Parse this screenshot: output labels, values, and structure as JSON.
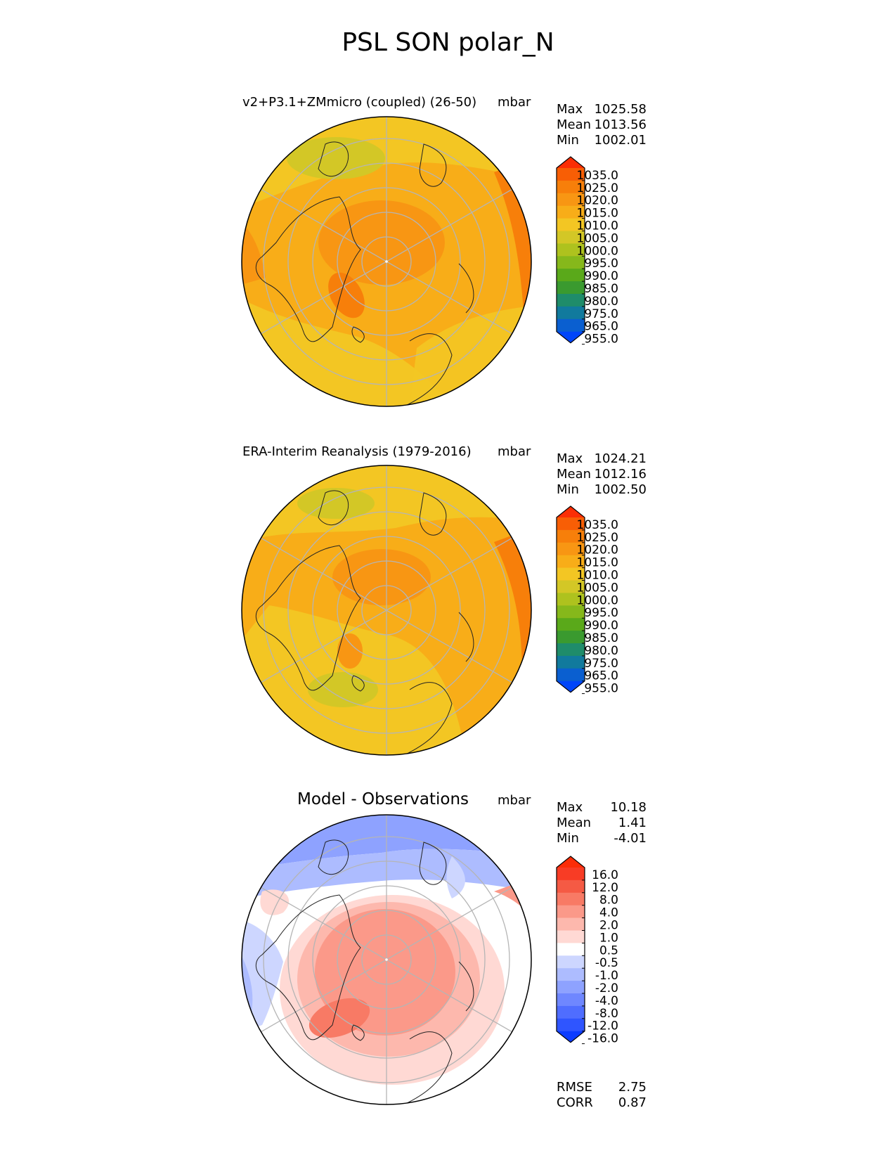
{
  "figure_title": "PSL SON polar_N",
  "units": "mbar",
  "colors": {
    "abs_levels": [
      "#0045f9",
      "#0a5fd0",
      "#117a9d",
      "#1f8c6a",
      "#3a9a2f",
      "#5aa91a",
      "#86b81b",
      "#aec21e",
      "#d3c726",
      "#f3c623",
      "#f8ad18",
      "#f89613",
      "#f77f0a",
      "#f85e05",
      "#fb2e05"
    ],
    "diff_levels": [
      "#0b3bff",
      "#2f55ff",
      "#4f6dff",
      "#6f87ff",
      "#8ea2ff",
      "#adbcff",
      "#cdd6ff",
      "#ffffff",
      "#ffd9d4",
      "#fdb8ad",
      "#fb9989",
      "#f87a65",
      "#f55a44",
      "#f83c25",
      "#fb2d08"
    ]
  },
  "panels": [
    {
      "name": "model",
      "title": "v2+P3.1+ZMmicro (coupled) (26-50)",
      "units": "mbar",
      "stats": [
        {
          "label": "Max",
          "value": "1025.58"
        },
        {
          "label": "Mean",
          "value": "1013.56"
        },
        {
          "label": "Min",
          "value": "1002.01"
        }
      ],
      "colorbar_ticks": [
        "1035.0",
        "1025.0",
        "1020.0",
        "1015.0",
        "1010.0",
        "1005.0",
        "1000.0",
        "995.0",
        "990.0",
        "985.0",
        "980.0",
        "975.0",
        "965.0",
        "955.0"
      ]
    },
    {
      "name": "observations",
      "title": "ERA-Interim Reanalysis (1979-2016)",
      "units": "mbar",
      "stats": [
        {
          "label": "Max",
          "value": "1024.21"
        },
        {
          "label": "Mean",
          "value": "1012.16"
        },
        {
          "label": "Min",
          "value": "1002.50"
        }
      ],
      "colorbar_ticks": [
        "1035.0",
        "1025.0",
        "1020.0",
        "1015.0",
        "1010.0",
        "1005.0",
        "1000.0",
        "995.0",
        "990.0",
        "985.0",
        "980.0",
        "975.0",
        "965.0",
        "955.0"
      ]
    },
    {
      "name": "difference",
      "title": "Model - Observations",
      "units": "mbar",
      "stats": [
        {
          "label": "Max",
          "value": "10.18"
        },
        {
          "label": "Mean",
          "value": "1.41"
        },
        {
          "label": "Min",
          "value": "-4.01"
        }
      ],
      "colorbar_ticks": [
        "16.0",
        "12.0",
        "8.0",
        "4.0",
        "2.0",
        "1.0",
        "0.5",
        "-0.5",
        "-1.0",
        "-2.0",
        "-4.0",
        "-8.0",
        "-12.0",
        "-16.0"
      ],
      "extra_stats": [
        {
          "label": "RMSE",
          "value": "2.75"
        },
        {
          "label": "CORR",
          "value": "0.87"
        }
      ]
    }
  ]
}
